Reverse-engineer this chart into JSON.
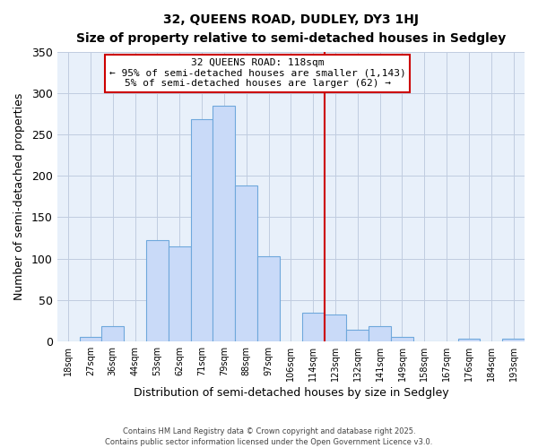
{
  "title": "32, QUEENS ROAD, DUDLEY, DY3 1HJ",
  "subtitle": "Size of property relative to semi-detached houses in Sedgley",
  "xlabel": "Distribution of semi-detached houses by size in Sedgley",
  "ylabel": "Number of semi-detached properties",
  "bar_labels": [
    "18sqm",
    "27sqm",
    "36sqm",
    "44sqm",
    "53sqm",
    "62sqm",
    "71sqm",
    "79sqm",
    "88sqm",
    "97sqm",
    "106sqm",
    "114sqm",
    "123sqm",
    "132sqm",
    "141sqm",
    "149sqm",
    "158sqm",
    "167sqm",
    "176sqm",
    "184sqm",
    "193sqm"
  ],
  "bar_values": [
    0,
    5,
    18,
    0,
    122,
    115,
    268,
    285,
    188,
    103,
    0,
    35,
    32,
    14,
    18,
    5,
    0,
    0,
    3,
    0,
    3
  ],
  "bar_color": "#c9daf8",
  "bar_edge_color": "#6fa8dc",
  "vline_color": "#cc0000",
  "annotation_title": "32 QUEENS ROAD: 118sqm",
  "annotation_line1": "← 95% of semi-detached houses are smaller (1,143)",
  "annotation_line2": "5% of semi-detached houses are larger (62) →",
  "annotation_box_color": "#ffffff",
  "annotation_box_edge": "#cc0000",
  "footer_line1": "Contains HM Land Registry data © Crown copyright and database right 2025.",
  "footer_line2": "Contains public sector information licensed under the Open Government Licence v3.0.",
  "ylim": [
    0,
    350
  ],
  "yticks": [
    0,
    50,
    100,
    150,
    200,
    250,
    300,
    350
  ],
  "background_color": "#ffffff",
  "plot_bg_color": "#e8f0fa",
  "grid_color": "#c0cce0"
}
